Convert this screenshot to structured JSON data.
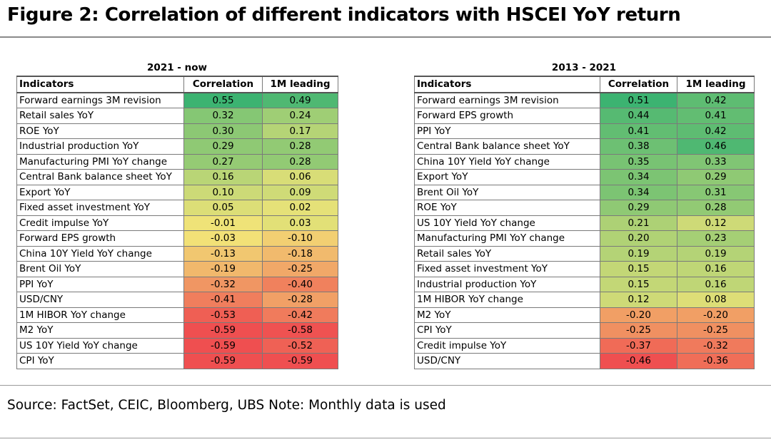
{
  "title": "Figure 2: Correlation of different indicators with HSCEI YoY return",
  "source": "Source: FactSet, CEIC, Bloomberg, UBS Note: Monthly data is used",
  "chart_data": [
    {
      "type": "table",
      "period": "2021 - now",
      "columns": [
        "Indicators",
        "Correlation",
        "1M leading"
      ],
      "rows": [
        {
          "indicator": "Forward earnings 3M revision",
          "correlation": 0.55,
          "leading": 0.49
        },
        {
          "indicator": "Retail sales YoY",
          "correlation": 0.32,
          "leading": 0.24
        },
        {
          "indicator": "ROE YoY",
          "correlation": 0.3,
          "leading": 0.17
        },
        {
          "indicator": "Industrial production YoY",
          "correlation": 0.29,
          "leading": 0.28
        },
        {
          "indicator": "Manufacturing PMI YoY change",
          "correlation": 0.27,
          "leading": 0.28
        },
        {
          "indicator": "Central Bank balance sheet YoY",
          "correlation": 0.16,
          "leading": 0.06
        },
        {
          "indicator": "Export YoY",
          "correlation": 0.1,
          "leading": 0.09
        },
        {
          "indicator": "Fixed asset investment YoY",
          "correlation": 0.05,
          "leading": 0.02
        },
        {
          "indicator": "Credit impulse YoY",
          "correlation": -0.01,
          "leading": 0.03
        },
        {
          "indicator": "Forward EPS growth",
          "correlation": -0.03,
          "leading": -0.1
        },
        {
          "indicator": "China 10Y Yield YoY change",
          "correlation": -0.13,
          "leading": -0.18
        },
        {
          "indicator": "Brent Oil YoY",
          "correlation": -0.19,
          "leading": -0.25
        },
        {
          "indicator": "PPI YoY",
          "correlation": -0.32,
          "leading": -0.4
        },
        {
          "indicator": "USD/CNY",
          "correlation": -0.41,
          "leading": -0.28
        },
        {
          "indicator": "1M HIBOR YoY change",
          "correlation": -0.53,
          "leading": -0.42
        },
        {
          "indicator": "M2 YoY",
          "correlation": -0.59,
          "leading": -0.58
        },
        {
          "indicator": "US 10Y Yield YoY change",
          "correlation": -0.59,
          "leading": -0.52
        },
        {
          "indicator": "CPI YoY",
          "correlation": -0.59,
          "leading": -0.59
        }
      ]
    },
    {
      "type": "table",
      "period": "2013 - 2021",
      "columns": [
        "Indicators",
        "Correlation",
        "1M leading"
      ],
      "rows": [
        {
          "indicator": "Forward earnings 3M revision",
          "correlation": 0.51,
          "leading": 0.42
        },
        {
          "indicator": "Forward EPS growth",
          "correlation": 0.44,
          "leading": 0.41
        },
        {
          "indicator": "PPI YoY",
          "correlation": 0.41,
          "leading": 0.42
        },
        {
          "indicator": "Central Bank balance sheet YoY",
          "correlation": 0.38,
          "leading": 0.46
        },
        {
          "indicator": "China 10Y Yield YoY change",
          "correlation": 0.35,
          "leading": 0.33
        },
        {
          "indicator": "Export YoY",
          "correlation": 0.34,
          "leading": 0.29
        },
        {
          "indicator": "Brent Oil YoY",
          "correlation": 0.34,
          "leading": 0.31
        },
        {
          "indicator": "ROE YoY",
          "correlation": 0.29,
          "leading": 0.28
        },
        {
          "indicator": "US 10Y Yield YoY change",
          "correlation": 0.21,
          "leading": 0.12
        },
        {
          "indicator": "Manufacturing PMI YoY change",
          "correlation": 0.2,
          "leading": 0.23
        },
        {
          "indicator": "Retail sales YoY",
          "correlation": 0.19,
          "leading": 0.19
        },
        {
          "indicator": "Fixed asset investment YoY",
          "correlation": 0.15,
          "leading": 0.16
        },
        {
          "indicator": "Industrial production YoY",
          "correlation": 0.15,
          "leading": 0.16
        },
        {
          "indicator": "1M HIBOR YoY change",
          "correlation": 0.12,
          "leading": 0.08
        },
        {
          "indicator": "M2 YoY",
          "correlation": -0.2,
          "leading": -0.2
        },
        {
          "indicator": "CPI YoY",
          "correlation": -0.25,
          "leading": -0.25
        },
        {
          "indicator": "Credit impulse YoY",
          "correlation": -0.37,
          "leading": -0.32
        },
        {
          "indicator": "USD/CNY",
          "correlation": -0.46,
          "leading": -0.36
        }
      ]
    }
  ],
  "colors": {
    "high": "#3cb371",
    "mid": "#f2e478",
    "low": "#ef4f50"
  }
}
